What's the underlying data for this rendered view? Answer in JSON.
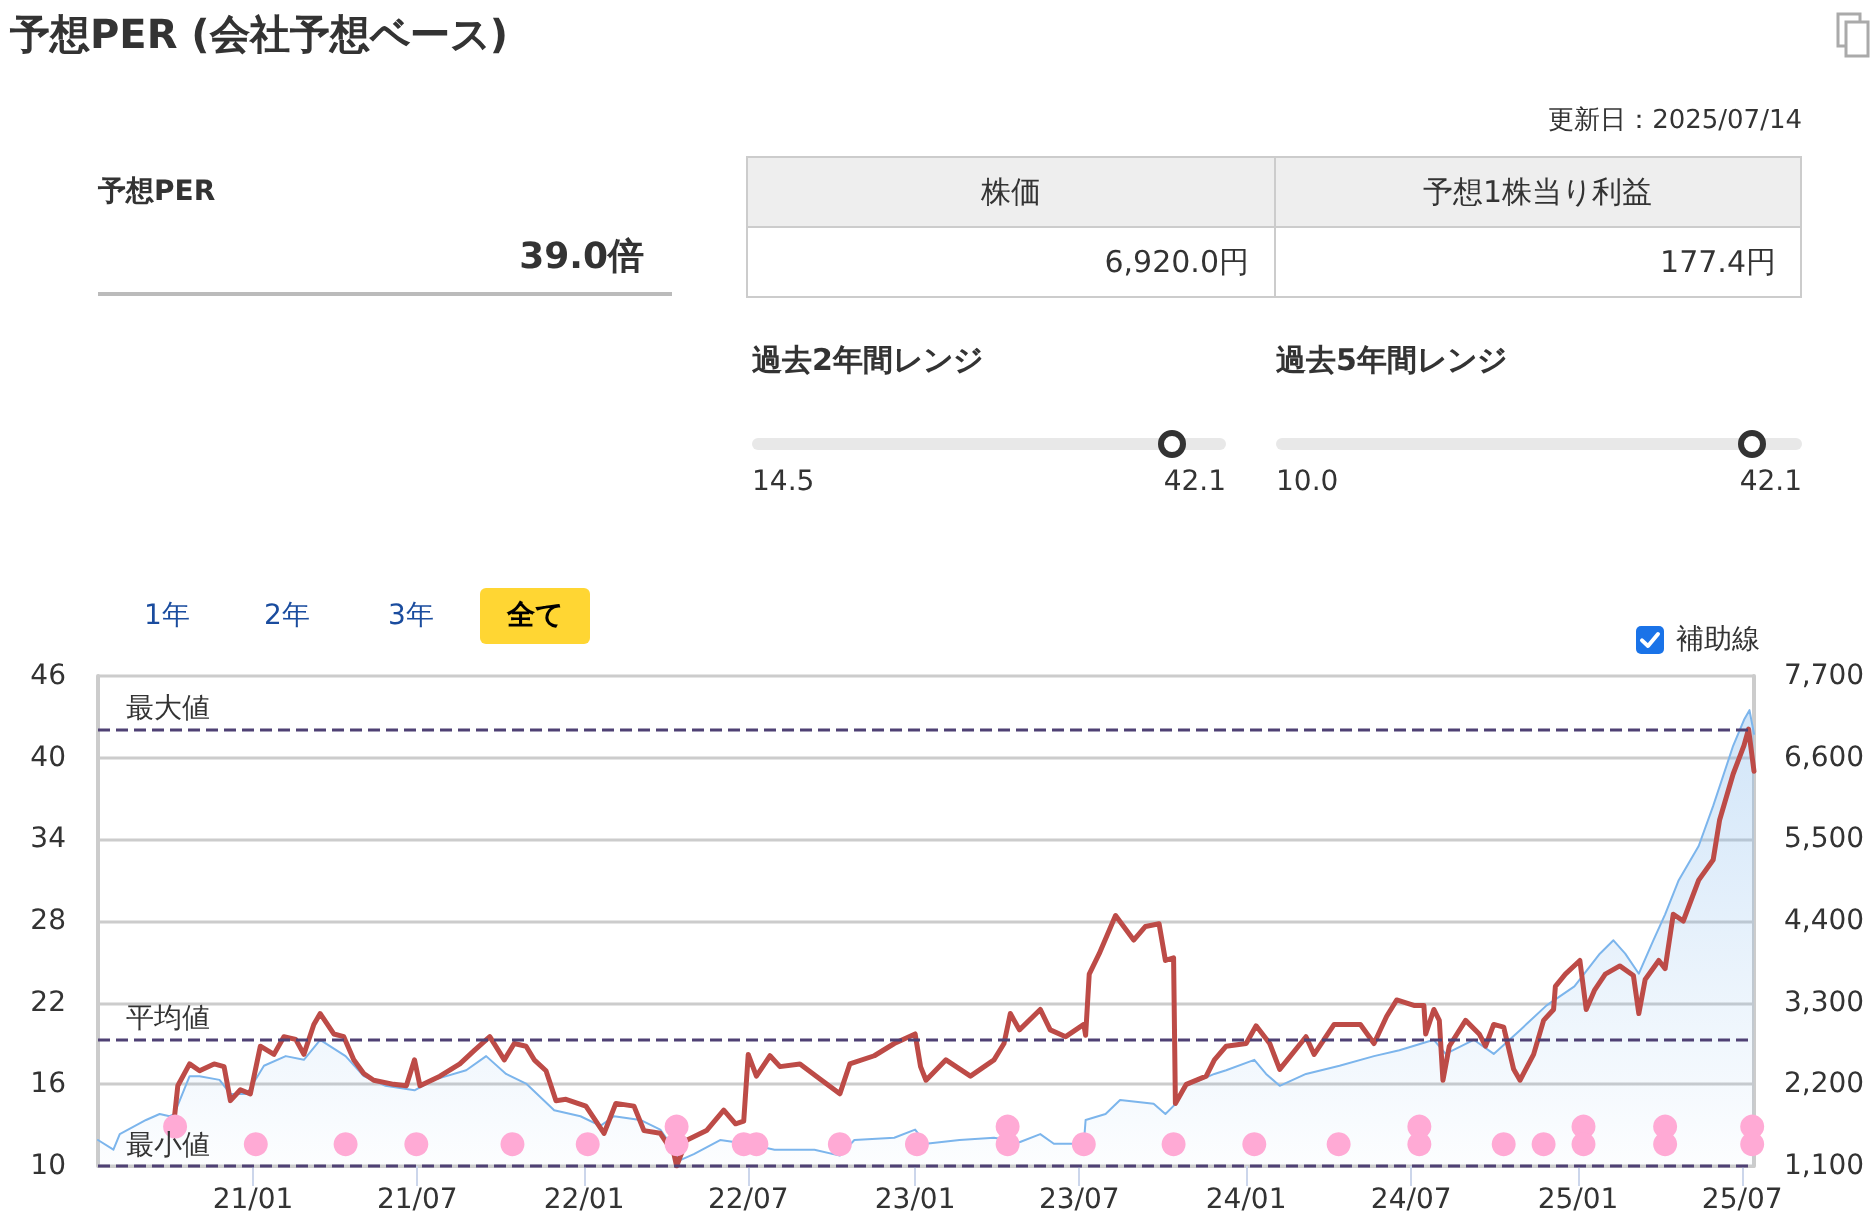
{
  "chart_data": [
    {
      "type": "other",
      "title": "予想PER (会社予想ベース)",
      "annotations": [
        "更新日：2025/07/14",
        "予想PER",
        "39.0倍",
        "株価",
        "予想1株当り利益",
        "6,920.0円",
        "177.4円",
        "過去2年間レンジ",
        "14.5",
        "42.1",
        "過去5年間レンジ",
        "10.0",
        "42.1",
        "1年",
        "2年",
        "3年",
        "全て",
        "補助線"
      ]
    },
    {
      "type": "line",
      "marker": "none",
      "grid": "y",
      "xlim": [
        "2020-07-14",
        "2025-07-14"
      ],
      "xticks": [
        {
          "value": "2021-01-01",
          "label": "21/01"
        },
        {
          "value": "2021-07-01",
          "label": "21/07"
        },
        {
          "value": "2022-01-01",
          "label": "22/01"
        },
        {
          "value": "2022-07-01",
          "label": "22/07"
        },
        {
          "value": "2023-01-01",
          "label": "23/01"
        },
        {
          "value": "2023-07-01",
          "label": "23/07"
        },
        {
          "value": "2024-01-01",
          "label": "24/01"
        },
        {
          "value": "2024-07-01",
          "label": "24/07"
        },
        {
          "value": "2025-01-01",
          "label": "25/01"
        },
        {
          "value": "2025-07-01",
          "label": "25/07"
        }
      ],
      "ylim": [
        10,
        46
      ],
      "yticks": [
        10,
        16,
        22,
        28,
        34,
        40,
        46
      ],
      "y2lim": [
        1100,
        7700
      ],
      "y2ticks": [
        {
          "value": 1100,
          "label": "1,100"
        },
        {
          "value": 2200,
          "label": "2,200"
        },
        {
          "value": 3300,
          "label": "3,300"
        },
        {
          "value": 4400,
          "label": "4,400"
        },
        {
          "value": 5500,
          "label": "5,500"
        },
        {
          "value": 6600,
          "label": "6,600"
        },
        {
          "value": 7700,
          "label": "7,700"
        }
      ],
      "ref_lines": [
        {
          "axis": "y",
          "value": 42.1,
          "label": "最大値",
          "color": "#4f4174",
          "line_style": "dashed"
        },
        {
          "axis": "y",
          "value": 19.3,
          "label": "平均値",
          "color": "#4f4174",
          "line_style": "dashed"
        },
        {
          "axis": "y",
          "value": 10.0,
          "label": "最小値",
          "color": "#4f4174",
          "line_style": "dashed"
        }
      ],
      "series": [
        {
          "type": "area",
          "axis": "y2",
          "color": "#7cb5ec",
          "x": [
            "2020-07-14",
            "2020-07-31",
            "2020-08-07",
            "2020-09-05",
            "2020-09-20",
            "2020-10-01",
            "2020-10-06",
            "2020-10-23",
            "2020-11-03",
            "2020-11-25",
            "2020-12-07",
            "2020-12-25",
            "2021-01-13",
            "2021-02-06",
            "2021-02-26",
            "2021-03-16",
            "2021-04-13",
            "2021-05-03",
            "2021-05-27",
            "2021-06-28",
            "2021-07-19",
            "2021-08-24",
            "2021-09-15",
            "2021-10-07",
            "2021-10-29",
            "2021-11-29",
            "2021-12-28",
            "2022-01-19",
            "2022-02-03",
            "2022-03-04",
            "2022-03-26",
            "2022-04-06",
            "2022-04-17",
            "2022-05-02",
            "2022-05-31",
            "2022-06-29",
            "2022-07-30",
            "2022-09-12",
            "2022-10-10",
            "2022-10-26",
            "2022-12-09",
            "2023-01-01",
            "2023-01-13",
            "2023-02-19",
            "2023-03-29",
            "2023-04-26",
            "2023-05-19",
            "2023-06-03",
            "2023-07-06",
            "2023-07-08",
            "2023-07-30",
            "2023-08-15",
            "2023-09-21",
            "2023-10-04",
            "2023-10-13",
            "2023-10-27",
            "2023-11-27",
            "2023-12-10",
            "2024-01-10",
            "2024-01-23",
            "2024-02-07",
            "2024-03-07",
            "2024-04-13",
            "2024-05-21",
            "2024-06-18",
            "2024-07-26",
            "2024-08-08",
            "2024-09-08",
            "2024-09-30",
            "2024-10-29",
            "2024-11-27",
            "2024-12-28",
            "2025-01-25",
            "2025-02-09",
            "2025-02-22",
            "2025-03-09",
            "2025-03-25",
            "2025-04-07",
            "2025-04-22",
            "2025-05-14",
            "2025-05-30",
            "2025-06-21",
            "2025-07-03",
            "2025-07-09",
            "2025-07-14"
          ],
          "values": [
            1450,
            1320,
            1530,
            1720,
            1800,
            1770,
            1800,
            2310,
            2310,
            2260,
            2070,
            2070,
            2450,
            2580,
            2530,
            2800,
            2580,
            2310,
            2180,
            2120,
            2260,
            2390,
            2580,
            2340,
            2210,
            1850,
            1770,
            1640,
            1770,
            1720,
            1590,
            1400,
            1180,
            1260,
            1450,
            1400,
            1320,
            1320,
            1240,
            1450,
            1480,
            1590,
            1400,
            1450,
            1480,
            1420,
            1530,
            1400,
            1400,
            1720,
            1800,
            1990,
            1940,
            1800,
            1910,
            2180,
            2340,
            2390,
            2530,
            2340,
            2180,
            2340,
            2450,
            2580,
            2660,
            2800,
            2610,
            2800,
            2610,
            2930,
            3260,
            3520,
            3960,
            4140,
            3960,
            3690,
            4140,
            4490,
            4950,
            5410,
            5950,
            6760,
            7110,
            7240,
            6920
          ]
        },
        {
          "type": "line",
          "color": "#bd4b47",
          "x": [
            "2020-10-06",
            "2020-10-10",
            "2020-10-23",
            "2020-11-03",
            "2020-11-19",
            "2020-11-30",
            "2020-12-07",
            "2020-12-18",
            "2020-12-29",
            "2021-01-09",
            "2021-01-24",
            "2021-02-04",
            "2021-02-17",
            "2021-02-26",
            "2021-03-09",
            "2021-03-16",
            "2021-03-31",
            "2021-04-11",
            "2021-04-22",
            "2021-05-03",
            "2021-05-14",
            "2021-06-05",
            "2021-06-19",
            "2021-06-28",
            "2021-07-04",
            "2021-07-26",
            "2021-08-17",
            "2021-09-02",
            "2021-09-19",
            "2021-10-05",
            "2021-10-16",
            "2021-10-29",
            "2021-11-07",
            "2021-11-20",
            "2021-12-01",
            "2021-12-12",
            "2022-01-03",
            "2022-01-23",
            "2022-02-05",
            "2022-02-25",
            "2022-03-08",
            "2022-03-26",
            "2022-04-10",
            "2022-04-13",
            "2022-04-24",
            "2022-05-16",
            "2022-06-04",
            "2022-06-17",
            "2022-06-26",
            "2022-07-01",
            "2022-07-10",
            "2022-07-25",
            "2022-08-05",
            "2022-08-27",
            "2022-09-14",
            "2022-10-10",
            "2022-10-21",
            "2022-11-17",
            "2022-12-09",
            "2023-01-01",
            "2023-01-07",
            "2023-01-13",
            "2023-02-04",
            "2023-03-03",
            "2023-03-29",
            "2023-04-09",
            "2023-04-16",
            "2023-04-26",
            "2023-05-19",
            "2023-05-30",
            "2023-06-16",
            "2023-07-06",
            "2023-07-08",
            "2023-07-12",
            "2023-07-23",
            "2023-08-10",
            "2023-08-30",
            "2023-09-12",
            "2023-09-27",
            "2023-10-04",
            "2023-10-13",
            "2023-10-15",
            "2023-10-27",
            "2023-11-18",
            "2023-11-27",
            "2023-12-10",
            "2024-01-01",
            "2024-01-12",
            "2024-01-27",
            "2024-02-07",
            "2024-03-07",
            "2024-03-16",
            "2024-04-07",
            "2024-05-06",
            "2024-05-21",
            "2024-06-04",
            "2024-06-15",
            "2024-07-04",
            "2024-07-15",
            "2024-07-17",
            "2024-07-26",
            "2024-08-01",
            "2024-08-05",
            "2024-08-12",
            "2024-08-30",
            "2024-09-14",
            "2024-09-21",
            "2024-09-30",
            "2024-10-11",
            "2024-10-22",
            "2024-10-29",
            "2024-11-13",
            "2024-11-24",
            "2024-12-05",
            "2024-12-07",
            "2024-12-18",
            "2025-01-03",
            "2025-01-10",
            "2025-01-19",
            "2025-01-31",
            "2025-02-16",
            "2025-03-03",
            "2025-03-09",
            "2025-03-16",
            "2025-03-31",
            "2025-04-07",
            "2025-04-16",
            "2025-04-27",
            "2025-05-14",
            "2025-05-30",
            "2025-06-06",
            "2025-06-21",
            "2025-07-03",
            "2025-07-08",
            "2025-07-14"
          ],
          "values": [
            13.4,
            15.9,
            17.5,
            17.0,
            17.5,
            17.3,
            14.8,
            15.6,
            15.3,
            18.8,
            18.2,
            19.5,
            19.3,
            18.2,
            20.4,
            21.2,
            19.7,
            19.5,
            17.8,
            16.8,
            16.3,
            16.0,
            15.9,
            17.8,
            15.9,
            16.6,
            17.5,
            18.5,
            19.5,
            17.8,
            19.0,
            18.8,
            17.8,
            17.0,
            14.8,
            14.9,
            14.4,
            12.4,
            14.6,
            14.4,
            12.6,
            12.4,
            10.9,
            10.0,
            11.9,
            12.6,
            14.1,
            13.1,
            13.3,
            18.2,
            16.6,
            18.1,
            17.3,
            17.5,
            16.6,
            15.3,
            17.5,
            18.1,
            19.0,
            19.7,
            17.3,
            16.3,
            17.8,
            16.6,
            17.8,
            19.0,
            21.2,
            20.0,
            21.5,
            20.0,
            19.5,
            20.4,
            19.6,
            24.1,
            25.6,
            28.4,
            26.6,
            27.6,
            27.8,
            25.1,
            25.3,
            14.6,
            16.0,
            16.6,
            17.8,
            18.8,
            19.0,
            20.3,
            19.0,
            17.1,
            19.5,
            18.2,
            20.4,
            20.4,
            19.0,
            21.0,
            22.2,
            21.8,
            21.8,
            19.7,
            21.5,
            20.7,
            16.3,
            18.8,
            20.7,
            19.7,
            18.8,
            20.4,
            20.2,
            17.1,
            16.3,
            18.2,
            20.7,
            21.5,
            23.2,
            24.1,
            25.1,
            21.5,
            22.9,
            24.1,
            24.7,
            24.0,
            21.2,
            23.7,
            25.1,
            24.5,
            28.5,
            28.0,
            31.0,
            32.5,
            35.4,
            38.8,
            40.9,
            42.1,
            39.0
          ]
        },
        {
          "type": "scatter",
          "color": "#ffaad5",
          "marker": "circle",
          "x": [
            "2020-10-07",
            "2021-01-04",
            "2021-04-13",
            "2021-06-30",
            "2021-10-14",
            "2022-01-05",
            "2022-04-13",
            "2022-04-13",
            "2022-06-26",
            "2022-07-10",
            "2022-10-10",
            "2023-01-03",
            "2023-04-13",
            "2023-04-13",
            "2023-07-06",
            "2023-10-13",
            "2024-01-10",
            "2024-04-12",
            "2024-07-10",
            "2024-07-10",
            "2024-10-11",
            "2024-11-24",
            "2025-01-07",
            "2025-01-07",
            "2025-04-07",
            "2025-04-07",
            "2025-07-12",
            "2025-07-12"
          ],
          "values": [
            12.9,
            11.6,
            11.6,
            11.6,
            11.6,
            11.6,
            12.9,
            11.6,
            11.6,
            11.6,
            11.6,
            11.6,
            12.9,
            11.6,
            11.6,
            11.6,
            11.6,
            11.6,
            12.9,
            11.6,
            11.6,
            11.6,
            12.9,
            11.6,
            12.9,
            11.6,
            12.9,
            11.6
          ]
        }
      ]
    }
  ]
}
